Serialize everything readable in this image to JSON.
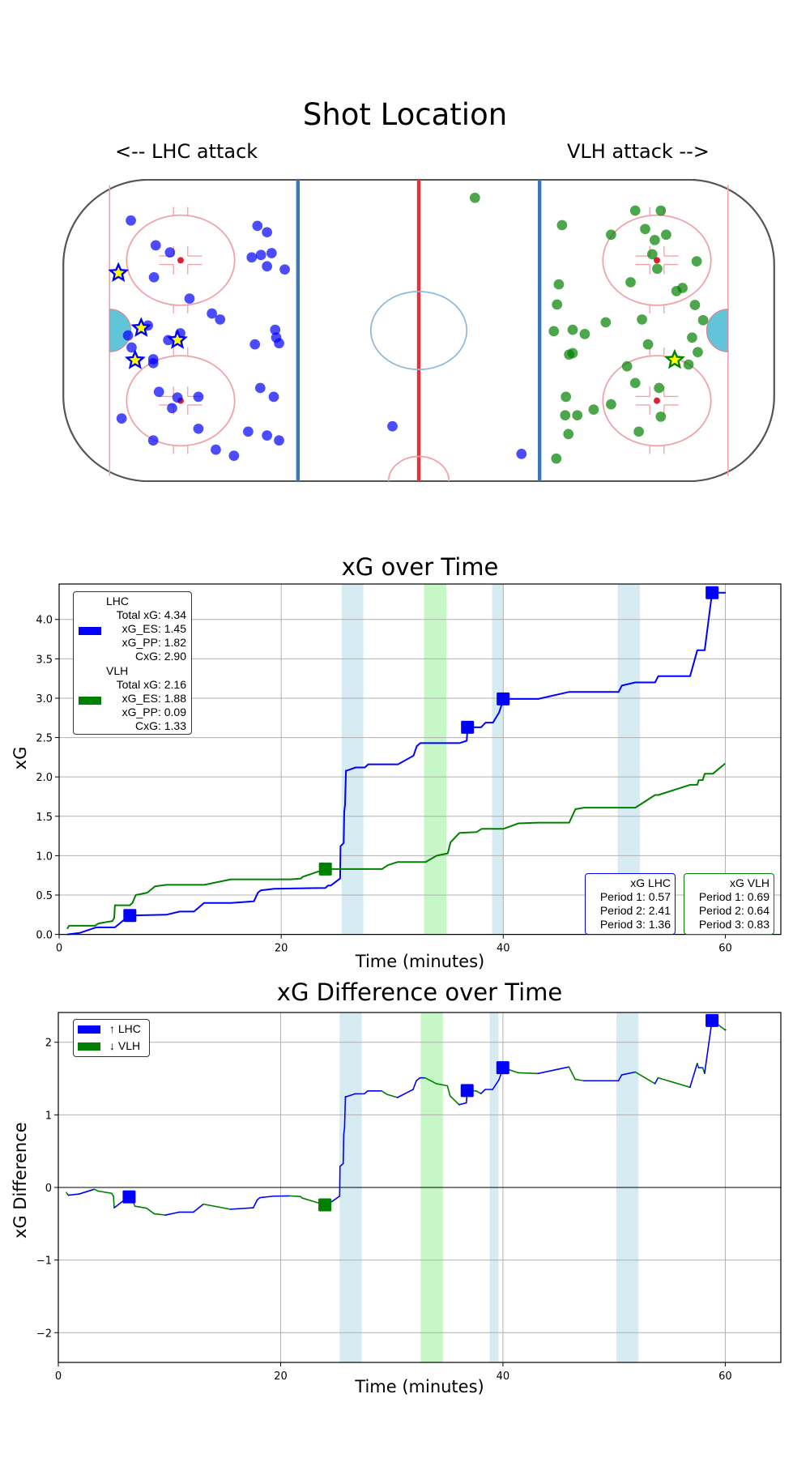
{
  "shot_location": {
    "title": "Shot Location",
    "attack_left": "<-- LHC attack",
    "attack_right": "VLH attack -->",
    "colors": {
      "LHC": "#0000ff",
      "VLH": "#008000",
      "star_fill": "#ffff00"
    },
    "units": "feet from center ice (x: -100..100, y: -42.5..42.5)",
    "LHC_shots": [
      [
        -81,
        31
      ],
      [
        -74,
        24
      ],
      [
        -70,
        22
      ],
      [
        -74.5,
        15
      ],
      [
        -64.5,
        9
      ],
      [
        -58.2,
        4.8
      ],
      [
        -55.9,
        3.1
      ],
      [
        -76.2,
        1.4
      ],
      [
        -81.8,
        -1.4
      ],
      [
        -80.8,
        -4.8
      ],
      [
        -70.5,
        -2.7
      ],
      [
        -67.1,
        -0.8
      ],
      [
        -74.7,
        -8.1
      ],
      [
        -74.7,
        -9.2
      ],
      [
        -45.4,
        29.5
      ],
      [
        -42.7,
        27.7
      ],
      [
        -47,
        20.6
      ],
      [
        -44.4,
        21.3
      ],
      [
        -41.4,
        21.8
      ],
      [
        -42.7,
        18.1
      ],
      [
        -37.7,
        17.2
      ],
      [
        -40.4,
        0.2
      ],
      [
        -40.1,
        -2
      ],
      [
        -39.3,
        -3.6
      ],
      [
        -46.1,
        -3.9
      ],
      [
        -44.6,
        -16.2
      ],
      [
        -40.8,
        -18.7
      ],
      [
        -73.1,
        -17.3
      ],
      [
        -67.9,
        -18.9
      ],
      [
        -62,
        -18.7
      ],
      [
        -69.4,
        -21.9
      ],
      [
        -83.6,
        -24.8
      ],
      [
        -62,
        -27.7
      ],
      [
        -74.7,
        -31
      ],
      [
        -57.1,
        -33.6
      ],
      [
        -52,
        -35.3
      ],
      [
        -48,
        -28.5
      ],
      [
        -42.7,
        -29.6
      ],
      [
        -39.3,
        -31
      ],
      [
        -7.4,
        -27
      ],
      [
        28.9,
        -34.8
      ]
    ],
    "LHC_goals": [
      [
        -84.5,
        16.2
      ],
      [
        -78.1,
        0.7
      ],
      [
        -67.9,
        -2.7
      ],
      [
        -79.8,
        -8.4
      ]
    ],
    "VLH_shots": [
      [
        60.9,
        33.8
      ],
      [
        68.1,
        33.8
      ],
      [
        40.3,
        29.7
      ],
      [
        54.1,
        27
      ],
      [
        63.7,
        28.6
      ],
      [
        69.6,
        27
      ],
      [
        66.4,
        25.5
      ],
      [
        65.7,
        21.5
      ],
      [
        67.1,
        17.4
      ],
      [
        78.2,
        19.5
      ],
      [
        59.6,
        13.6
      ],
      [
        72.5,
        11.1
      ],
      [
        74.2,
        12
      ],
      [
        39.4,
        13
      ],
      [
        38.9,
        7.3
      ],
      [
        77.7,
        7.2
      ],
      [
        62.8,
        3.1
      ],
      [
        52.6,
        2.3
      ],
      [
        80,
        2.9
      ],
      [
        38,
        -0.2
      ],
      [
        43.3,
        0.2
      ],
      [
        46.7,
        -1
      ],
      [
        76.9,
        -2
      ],
      [
        64.5,
        -3.9
      ],
      [
        78.5,
        -6.1
      ],
      [
        42.3,
        -6.8
      ],
      [
        43.3,
        -6.4
      ],
      [
        58.6,
        -10.1
      ],
      [
        75.9,
        -9.6
      ],
      [
        60.9,
        -14.8
      ],
      [
        67.6,
        -16.2
      ],
      [
        41.4,
        -18.7
      ],
      [
        54.1,
        -20.8
      ],
      [
        49.2,
        -22.3
      ],
      [
        41.2,
        -23.9
      ],
      [
        44.6,
        -23.9
      ],
      [
        68.1,
        -24.3
      ],
      [
        61.9,
        -28.5
      ],
      [
        42.1,
        -29.2
      ],
      [
        38.7,
        -36.1
      ],
      [
        15.8,
        37.4
      ]
    ],
    "VLH_goals": [
      [
        72,
        -8.3
      ]
    ]
  },
  "chart_data": [
    {
      "type": "line",
      "title": "xG over Time",
      "xlabel": "Time (minutes)",
      "ylabel": "xG",
      "xlim": [
        0,
        65
      ],
      "ylim": [
        0,
        4.45
      ],
      "xticks": [
        0,
        20,
        40,
        60
      ],
      "xtick_labels": [
        "0",
        "20",
        "40",
        "60"
      ],
      "yticks": [
        0,
        0.5,
        1,
        1.5,
        2,
        2.5,
        3,
        3.5,
        4
      ],
      "ytick_labels": [
        "0.0",
        "0.5",
        "1.0",
        "1.5",
        "2.0",
        "2.5",
        "3.0",
        "3.5",
        "4.0"
      ],
      "grid": true,
      "series": [
        {
          "name": "LHC",
          "color": "#0000ff",
          "x": [
            0.73,
            1.87,
            3.33,
            5.03,
            5.88,
            6.37,
            9.65,
            10.86,
            12.15,
            13.05,
            15.48,
            17.54,
            17.9,
            18.15,
            19.36,
            23.98,
            24.22,
            24.46,
            25.31,
            25.34,
            25.63,
            25.68,
            25.75,
            25.83,
            25.9,
            26.7,
            27.53,
            27.84,
            30.52,
            31.92,
            32.21,
            32.53,
            36.06,
            36.71,
            36.78,
            38.0,
            38.41,
            39.07,
            39.63,
            39.82,
            39.99,
            43.15,
            45.94,
            50.39,
            50.68,
            51.89,
            53.67,
            53.96,
            56.83,
            57.48,
            58.14,
            58.81,
            60.03
          ],
          "y": [
            0,
            0.02,
            0.09,
            0.09,
            0.19,
            0.24,
            0.25,
            0.29,
            0.29,
            0.4,
            0.4,
            0.42,
            0.53,
            0.56,
            0.58,
            0.59,
            0.62,
            0.62,
            0.71,
            1.12,
            1.16,
            1.56,
            1.65,
            2.08,
            2.08,
            2.12,
            2.12,
            2.16,
            2.16,
            2.27,
            2.39,
            2.43,
            2.43,
            2.46,
            2.63,
            2.63,
            2.69,
            2.69,
            2.82,
            2.9,
            2.99,
            2.99,
            3.08,
            3.08,
            3.16,
            3.2,
            3.2,
            3.28,
            3.28,
            3.61,
            3.61,
            4.34,
            4.34
          ]
        },
        {
          "name": "VLH",
          "color": "#008000",
          "x": [
            0.73,
            0.9,
            3.21,
            3.57,
            4.79,
            4.96,
            5.03,
            6.37,
            6.6,
            6.9,
            7.94,
            8.63,
            9.65,
            13.05,
            15.48,
            20.82,
            21.79,
            21.92,
            23.98,
            29.08,
            29.61,
            30.49,
            33.0,
            34.0,
            35.0,
            35.25,
            36.06,
            37.6,
            38.05,
            39.99,
            41.38,
            43.15,
            45.94,
            46.5,
            47.28,
            51.9,
            53.67,
            53.96,
            56.83,
            57.48,
            57.6,
            57.97,
            58.14,
            58.87,
            59.98
          ],
          "y": [
            0.07,
            0.11,
            0.11,
            0.14,
            0.17,
            0.21,
            0.37,
            0.37,
            0.4,
            0.5,
            0.53,
            0.61,
            0.63,
            0.63,
            0.7,
            0.7,
            0.71,
            0.73,
            0.83,
            0.83,
            0.88,
            0.92,
            0.92,
            1.0,
            1.03,
            1.17,
            1.29,
            1.3,
            1.34,
            1.34,
            1.41,
            1.42,
            1.42,
            1.59,
            1.61,
            1.61,
            1.77,
            1.77,
            1.9,
            1.9,
            1.96,
            1.96,
            2.04,
            2.04,
            2.17
          ]
        }
      ],
      "goals": [
        {
          "team": "LHC",
          "x": 6.37,
          "y": 0.24
        },
        {
          "team": "VLH",
          "x": 23.98,
          "y": 0.83
        },
        {
          "team": "LHC",
          "x": 36.78,
          "y": 2.63
        },
        {
          "team": "LHC",
          "x": 39.99,
          "y": 2.99
        },
        {
          "team": "LHC",
          "x": 58.81,
          "y": 4.34
        }
      ],
      "bands": [
        {
          "team": "LHC",
          "color": "#add8e6",
          "start": 25.44,
          "end": 27.4
        },
        {
          "team": "VLH",
          "color": "#90ee90",
          "start": 32.87,
          "end": 34.89
        },
        {
          "team": "LHC",
          "color": "#add8e6",
          "start": 39.0,
          "end": 40.0
        },
        {
          "team": "LHC",
          "color": "#add8e6",
          "start": 50.3,
          "end": 52.3
        }
      ],
      "legend": {
        "placement": "upper-left",
        "entries": [
          {
            "color": "#0000ff",
            "lines": [
              "LHC",
              "Total xG: 4.34",
              "xG_ES: 1.45",
              "xG_PP: 1.82",
              "CxG: 2.90"
            ]
          },
          {
            "color": "#008000",
            "lines": [
              "VLH",
              "Total xG: 2.16",
              "xG_ES: 1.88",
              "xG_PP: 0.09",
              "CxG: 1.33"
            ]
          }
        ]
      },
      "period_boxes": [
        {
          "color": "#0000ff",
          "lines": [
            "xG LHC",
            "Period 1: 0.57",
            "Period 2: 2.41",
            "Period 3: 1.36"
          ]
        },
        {
          "color": "#008000",
          "lines": [
            "xG VLH",
            "Period 1: 0.69",
            "Period 2: 0.64",
            "Period 3: 0.83"
          ]
        }
      ]
    },
    {
      "type": "line",
      "title": "xG Difference over Time",
      "xlabel": "Time (minutes)",
      "ylabel": "xG Difference",
      "xlim": [
        0,
        65
      ],
      "ylim": [
        -2.41,
        2.41
      ],
      "xticks": [
        0,
        20,
        40,
        60
      ],
      "xtick_labels": [
        "0",
        "20",
        "40",
        "60"
      ],
      "yticks": [
        -2,
        -1,
        0,
        1,
        2
      ],
      "ytick_labels": [
        "−2",
        "−1",
        "0",
        "1",
        "2"
      ],
      "grid": true,
      "derived_from": "LHC minus VLH cumulative xG (chart 1 series)",
      "segment_colors": {
        "up": "#0000ff",
        "down": "#008000"
      },
      "legend": {
        "placement": "upper-left",
        "entries": [
          {
            "color": "#0000ff",
            "label": "↑ LHC"
          },
          {
            "color": "#008000",
            "label": "↓ VLH"
          }
        ]
      },
      "bands": [
        {
          "color": "#add8e6",
          "start": 25.3,
          "end": 27.3
        },
        {
          "color": "#90ee90",
          "start": 32.6,
          "end": 34.6
        },
        {
          "color": "#add8e6",
          "start": 38.8,
          "end": 39.6
        },
        {
          "color": "#add8e6",
          "start": 50.2,
          "end": 52.2
        }
      ]
    }
  ]
}
